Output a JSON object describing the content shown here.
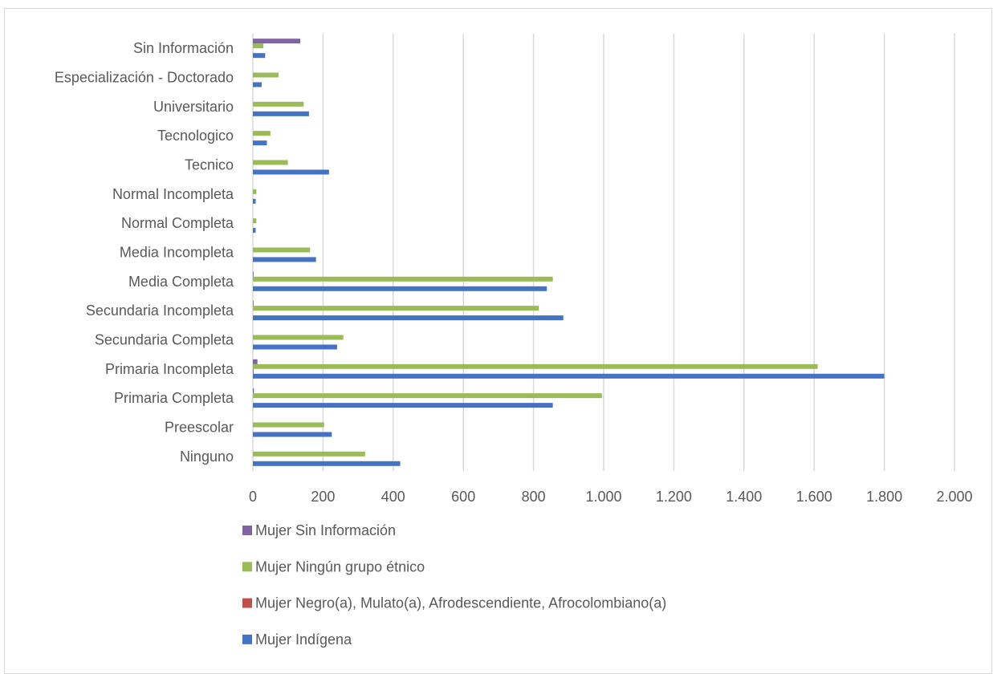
{
  "chart_data": {
    "type": "bar",
    "orientation": "horizontal",
    "title": "",
    "xlabel": "",
    "ylabel": "",
    "xlim": [
      0,
      2000
    ],
    "x_ticks": [
      0,
      200,
      400,
      600,
      800,
      1000,
      1200,
      1400,
      1600,
      1800,
      2000
    ],
    "x_tick_labels": [
      "0",
      "200",
      "400",
      "600",
      "800",
      "1.000",
      "1.200",
      "1.400",
      "1.600",
      "1.800",
      "2.000"
    ],
    "grid": "vertical",
    "legend_position": "bottom",
    "categories": [
      "Ninguno",
      "Preescolar",
      "Primaria Completa",
      "Primaria Incompleta",
      "Secundaria Completa",
      "Secundaria Incompleta",
      "Media Completa",
      "Media Incompleta",
      "Normal Completa",
      "Normal Incompleta",
      "Tecnico",
      "Tecnologico",
      "Universitario",
      "Especialización - Doctorado",
      "Sin Información"
    ],
    "series": [
      {
        "name": "Mujer Indígena",
        "color": "#4472c4",
        "values": [
          420,
          225,
          855,
          1800,
          240,
          885,
          838,
          180,
          8,
          8,
          217,
          40,
          160,
          25,
          35
        ]
      },
      {
        "name": "Mujer Negro(a), Mulato(a), Afrodescendiente, Afrocolombiano(a)",
        "color": "#c0504d",
        "values": [
          0,
          0,
          0,
          2,
          0,
          0,
          0,
          0,
          0,
          0,
          0,
          0,
          0,
          0,
          0
        ]
      },
      {
        "name": "Mujer Ningún grupo étnico",
        "color": "#9bbb59",
        "values": [
          320,
          203,
          995,
          1610,
          258,
          815,
          855,
          163,
          10,
          10,
          100,
          50,
          145,
          73,
          30
        ]
      },
      {
        "name": "Mujer Sin Información",
        "color": "#8064a2",
        "values": [
          0,
          0,
          3,
          13,
          0,
          2,
          2,
          0,
          0,
          0,
          0,
          0,
          0,
          0,
          135
        ]
      }
    ],
    "legend_order": [
      "Mujer Sin Información",
      "Mujer Ningún grupo étnico",
      "Mujer Negro(a), Mulato(a), Afrodescendiente, Afrocolombiano(a)",
      "Mujer Indígena"
    ]
  }
}
